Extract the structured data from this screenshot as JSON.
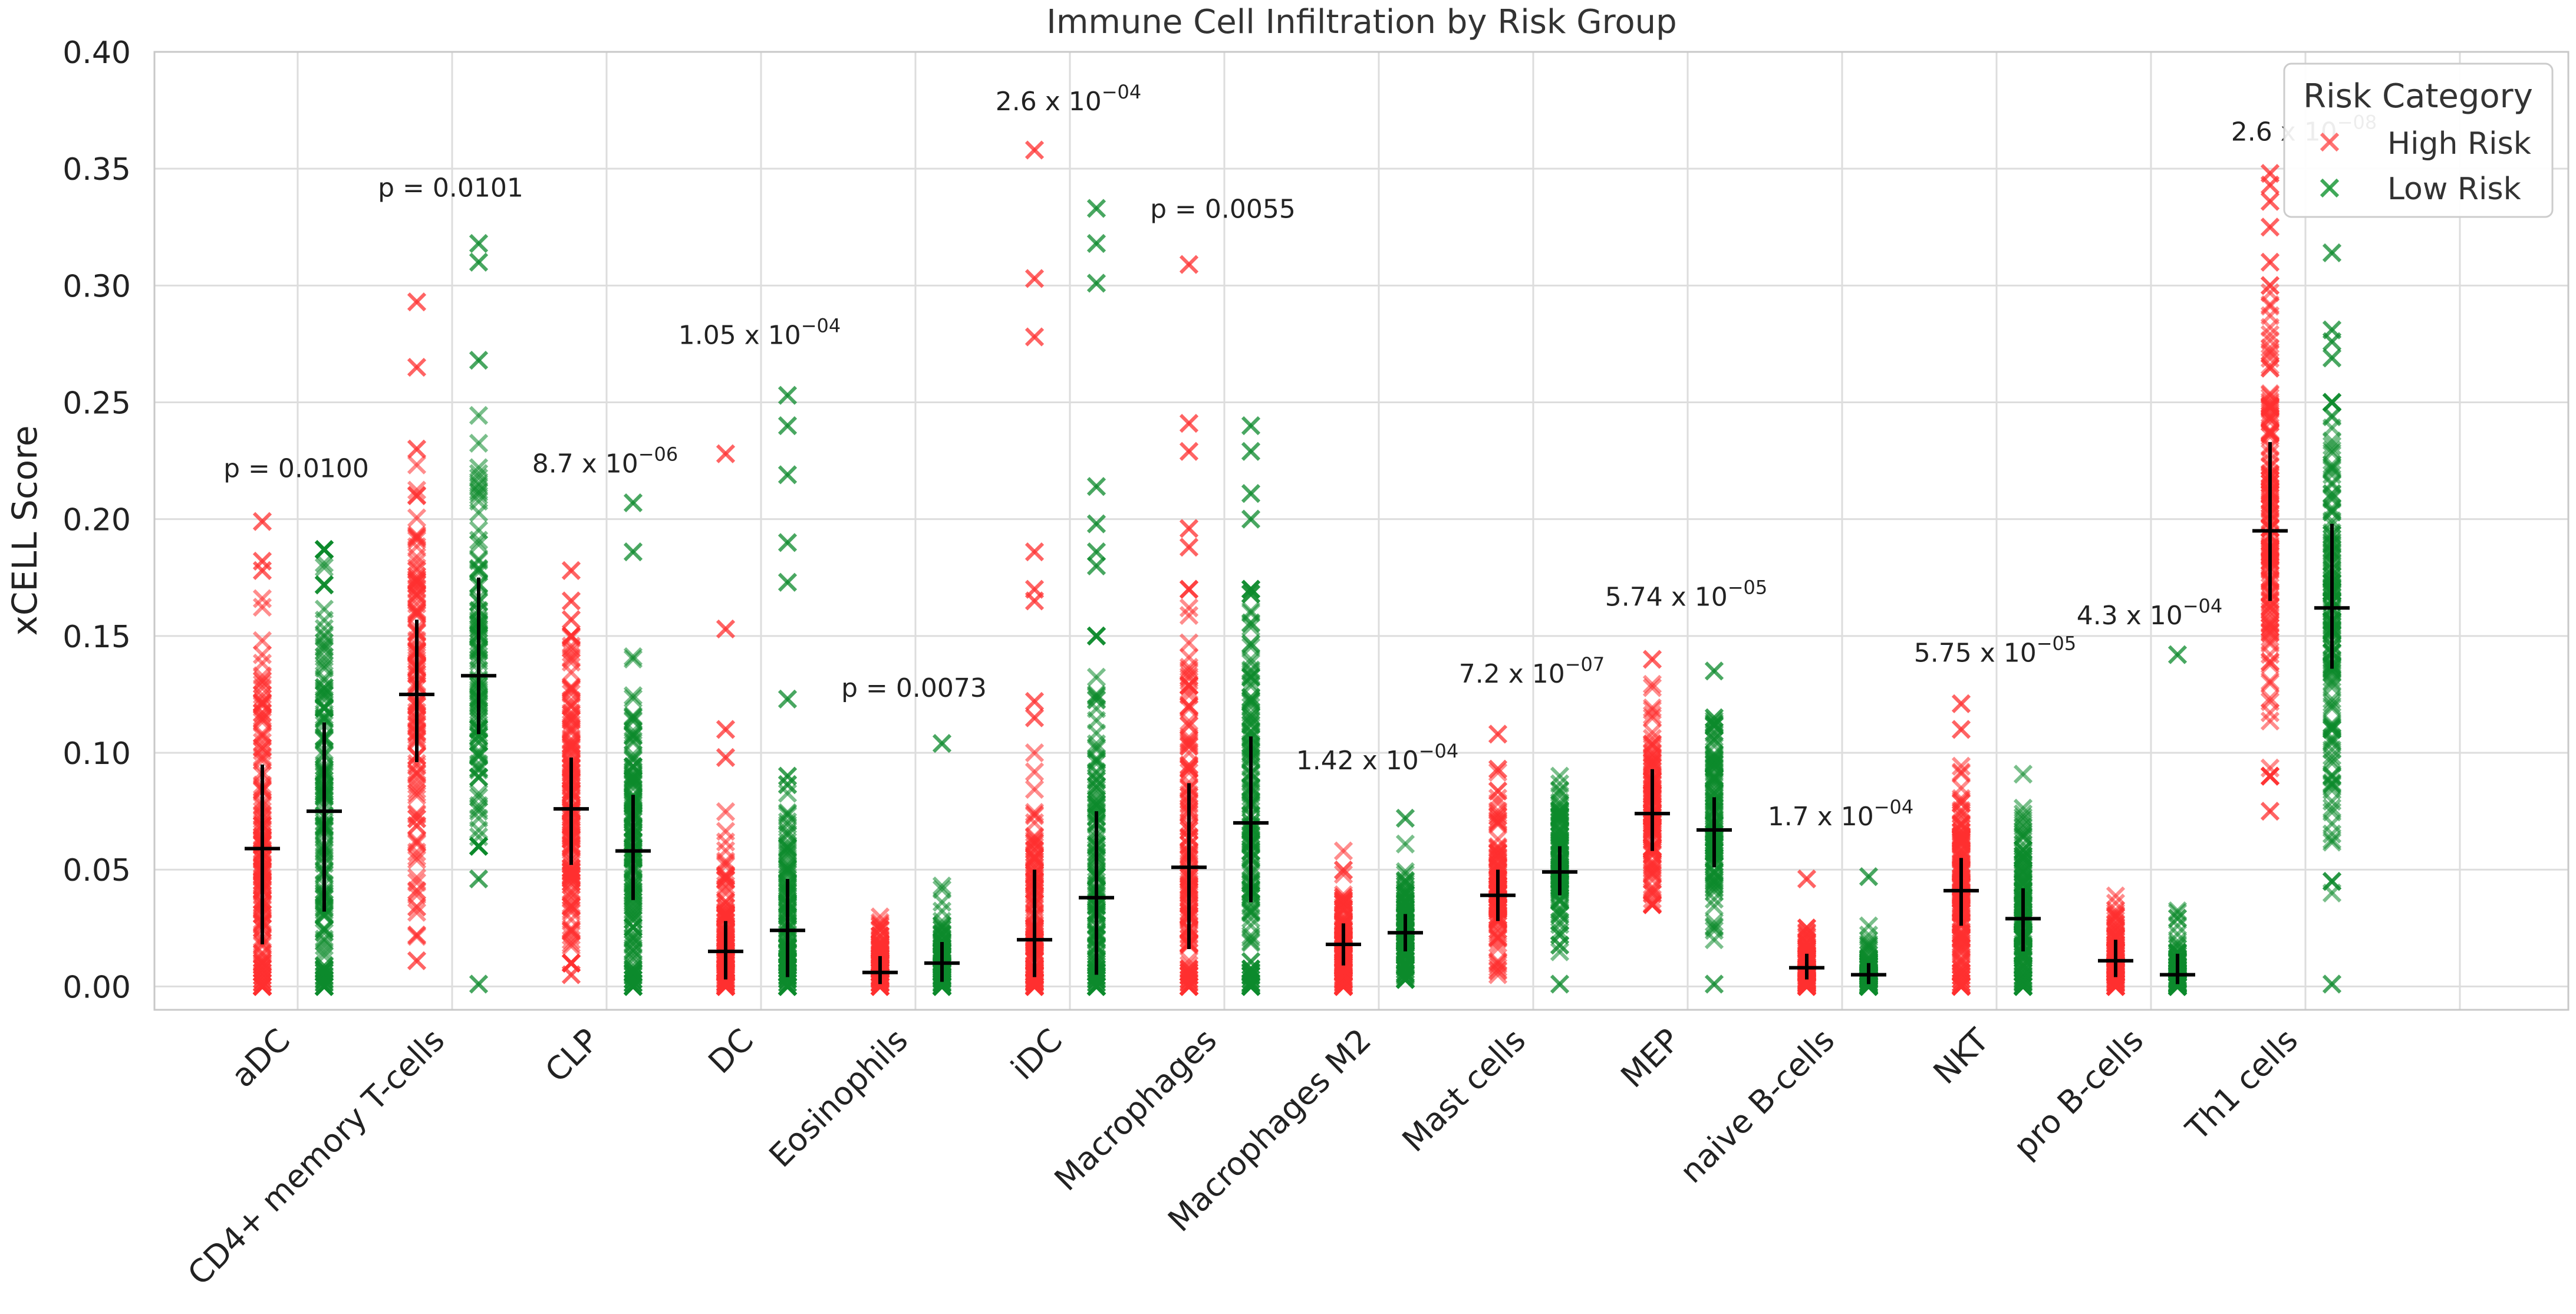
{
  "chart_data": {
    "type": "scatter",
    "title": "Immune Cell Infiltration by Risk Group",
    "xlabel": "",
    "ylabel": "xCELL Score",
    "ylim": [
      -0.01,
      0.4
    ],
    "yticks": [
      0.0,
      0.05,
      0.1,
      0.15,
      0.2,
      0.25,
      0.3,
      0.35,
      0.4
    ],
    "ytick_labels": [
      "0.00",
      "0.05",
      "0.10",
      "0.15",
      "0.20",
      "0.25",
      "0.30",
      "0.35",
      "0.40"
    ],
    "grid": true,
    "legend": {
      "title": "Risk Category",
      "position": "top-right",
      "entries": [
        {
          "label": "High Risk",
          "color": "#ff5a5a"
        },
        {
          "label": "Low Risk",
          "color": "#1e9a3c"
        }
      ]
    },
    "colors": {
      "high": "#ff3030",
      "low": "#0c8a2c",
      "stat": "#000000",
      "grid": "#dddddd"
    },
    "categories": [
      "aDC",
      "CD4+ memory T-cells",
      "CLP",
      "DC",
      "Eosinophils",
      "iDC",
      "Macrophages",
      "Macrophages M2",
      "Mast cells",
      "MEP",
      "naive B-cells",
      "NKT",
      "pro B-cells",
      "Th1 cells"
    ],
    "series": [
      {
        "name": "High Risk",
        "median": [
          0.059,
          0.125,
          0.076,
          0.015,
          0.006,
          0.02,
          0.051,
          0.018,
          0.039,
          0.074,
          0.008,
          0.041,
          0.011,
          0.195
        ],
        "q1": [
          0.018,
          0.096,
          0.052,
          0.003,
          0.001,
          0.004,
          0.016,
          0.009,
          0.028,
          0.058,
          0.003,
          0.026,
          0.004,
          0.165
        ],
        "q3": [
          0.095,
          0.157,
          0.098,
          0.028,
          0.013,
          0.05,
          0.087,
          0.027,
          0.05,
          0.093,
          0.014,
          0.055,
          0.02,
          0.233
        ],
        "range": [
          [
            0.0,
            0.17
          ],
          [
            0.02,
            0.26
          ],
          [
            0.01,
            0.15
          ],
          [
            0.0,
            0.08
          ],
          [
            0.0,
            0.04
          ],
          [
            0.0,
            0.1
          ],
          [
            0.0,
            0.17
          ],
          [
            0.0,
            0.058
          ],
          [
            0.005,
            0.1
          ],
          [
            0.035,
            0.14
          ],
          [
            0.0,
            0.025
          ],
          [
            0.0,
            0.1
          ],
          [
            0.0,
            0.04
          ],
          [
            0.09,
            0.3
          ]
        ],
        "outliers": [
          [
            0.199,
            0.182,
            0.178
          ],
          [
            0.293,
            0.265,
            0.23,
            0.21,
            0.011,
            0.022,
            0.034,
            0.041
          ],
          [
            0.178,
            0.165,
            0.157,
            0.005
          ],
          [
            0.228,
            0.153,
            0.11,
            0.098
          ],
          [],
          [
            0.358,
            0.303,
            0.278,
            0.186,
            0.17,
            0.165,
            0.122,
            0.115
          ],
          [
            0.309,
            0.241,
            0.229,
            0.196,
            0.188
          ],
          [],
          [
            0.108,
            0.093
          ],
          [
            0.14
          ],
          [
            0.046
          ],
          [
            0.121,
            0.11
          ],
          [],
          [
            0.348,
            0.343,
            0.336,
            0.325,
            0.31,
            0.09,
            0.075
          ]
        ],
        "n_points": [
          150,
          110,
          150,
          130,
          110,
          140,
          150,
          120,
          110,
          120,
          100,
          140,
          100,
          150
        ]
      },
      {
        "name": "Low Risk",
        "median": [
          0.075,
          0.133,
          0.058,
          0.024,
          0.01,
          0.038,
          0.07,
          0.023,
          0.049,
          0.067,
          0.005,
          0.029,
          0.005,
          0.162
        ],
        "q1": [
          0.032,
          0.108,
          0.037,
          0.004,
          0.002,
          0.005,
          0.036,
          0.015,
          0.039,
          0.051,
          0.001,
          0.015,
          0.001,
          0.136
        ],
        "q3": [
          0.113,
          0.175,
          0.082,
          0.046,
          0.019,
          0.075,
          0.107,
          0.031,
          0.06,
          0.081,
          0.01,
          0.042,
          0.014,
          0.198
        ],
        "range": [
          [
            0.0,
            0.187
          ],
          [
            0.06,
            0.25
          ],
          [
            0.0,
            0.165
          ],
          [
            0.0,
            0.09
          ],
          [
            0.0,
            0.043
          ],
          [
            0.0,
            0.15
          ],
          [
            0.0,
            0.17
          ],
          [
            0.003,
            0.062
          ],
          [
            0.005,
            0.09
          ],
          [
            0.02,
            0.115
          ],
          [
            0.0,
            0.028
          ],
          [
            0.0,
            0.1
          ],
          [
            0.0,
            0.037
          ],
          [
            0.04,
            0.25
          ]
        ],
        "outliers": [
          [],
          [
            0.318,
            0.31,
            0.268,
            0.046,
            0.001
          ],
          [
            0.207,
            0.186
          ],
          [
            0.253,
            0.24,
            0.219,
            0.19,
            0.173,
            0.123
          ],
          [
            0.104
          ],
          [
            0.333,
            0.318,
            0.301,
            0.214,
            0.198,
            0.186,
            0.18
          ],
          [
            0.24,
            0.229,
            0.211,
            0.2
          ],
          [
            0.072
          ],
          [
            0.001
          ],
          [
            0.135,
            0.001
          ],
          [
            0.047
          ],
          [],
          [
            0.142
          ],
          [
            0.314,
            0.281,
            0.276,
            0.269,
            0.045,
            0.001
          ]
        ],
        "n_points": [
          150,
          110,
          150,
          130,
          110,
          140,
          150,
          120,
          110,
          120,
          100,
          140,
          100,
          150
        ]
      }
    ],
    "annotations": [
      {
        "category": "aDC",
        "mode": "p",
        "text": "p = 0.0100",
        "y": 0.218
      },
      {
        "category": "CD4+ memory T-cells",
        "mode": "p",
        "text": "p = 0.0101",
        "y": 0.338
      },
      {
        "category": "CLP",
        "mode": "sci",
        "mantissa": "8.7 x 10",
        "exponent": "−06",
        "y": 0.22
      },
      {
        "category": "DC",
        "mode": "sci",
        "mantissa": "1.05 x 10",
        "exponent": "−04",
        "y": 0.275
      },
      {
        "category": "Eosinophils",
        "mode": "p",
        "text": "p = 0.0073",
        "y": 0.124
      },
      {
        "category": "iDC",
        "mode": "sci",
        "mantissa": "2.6 x 10",
        "exponent": "−04",
        "y": 0.375
      },
      {
        "category": "Macrophages",
        "mode": "p",
        "text": "p = 0.0055",
        "y": 0.329
      },
      {
        "category": "Macrophages M2",
        "mode": "sci",
        "mantissa": "1.42 x 10",
        "exponent": "−04",
        "y": 0.093
      },
      {
        "category": "Mast cells",
        "mode": "sci",
        "mantissa": "7.2 x 10",
        "exponent": "−07",
        "y": 0.13
      },
      {
        "category": "MEP",
        "mode": "sci",
        "mantissa": "5.74 x 10",
        "exponent": "−05",
        "y": 0.163
      },
      {
        "category": "naive B-cells",
        "mode": "sci",
        "mantissa": "1.7 x 10",
        "exponent": "−04",
        "y": 0.069
      },
      {
        "category": "NKT",
        "mode": "sci",
        "mantissa": "5.75 x 10",
        "exponent": "−05",
        "y": 0.139
      },
      {
        "category": "pro B-cells",
        "mode": "sci",
        "mantissa": "4.3 x 10",
        "exponent": "−04",
        "y": 0.155
      },
      {
        "category": "Th1 cells",
        "mode": "sci",
        "mantissa": "2.6 x 10",
        "exponent": "−08",
        "y": 0.362
      }
    ]
  }
}
